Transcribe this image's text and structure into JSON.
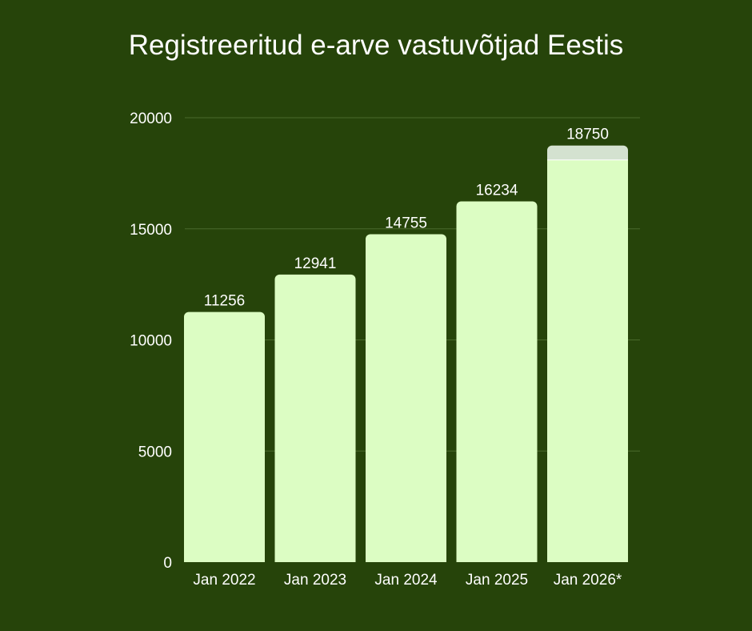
{
  "colors": {
    "background": "#26440a",
    "bar": "#dcfdc3",
    "bar_projection_top": "#d4e2d0",
    "gridline": "#4a6a2c",
    "text": "#ffffff"
  },
  "chart_data": {
    "type": "bar",
    "title": "Registreeritud e-arve vastuvõtjad Eestis",
    "xlabel": "",
    "ylabel": "",
    "categories": [
      "Jan 2022",
      "Jan 2023",
      "Jan 2024",
      "Jan 2025",
      "Jan 2026*"
    ],
    "values": [
      11256,
      12941,
      14755,
      16234,
      18750
    ],
    "value_labels": [
      "11256",
      "12941",
      "14755",
      "16234",
      "18750"
    ],
    "projected_lower_part": [
      null,
      null,
      null,
      null,
      18100
    ],
    "ylim": [
      0,
      20000
    ],
    "yticks": [
      0,
      5000,
      10000,
      15000,
      20000
    ],
    "ytick_labels": [
      "0",
      "5000",
      "10000",
      "15000",
      "20000"
    ],
    "grid": true,
    "legend": "none"
  }
}
